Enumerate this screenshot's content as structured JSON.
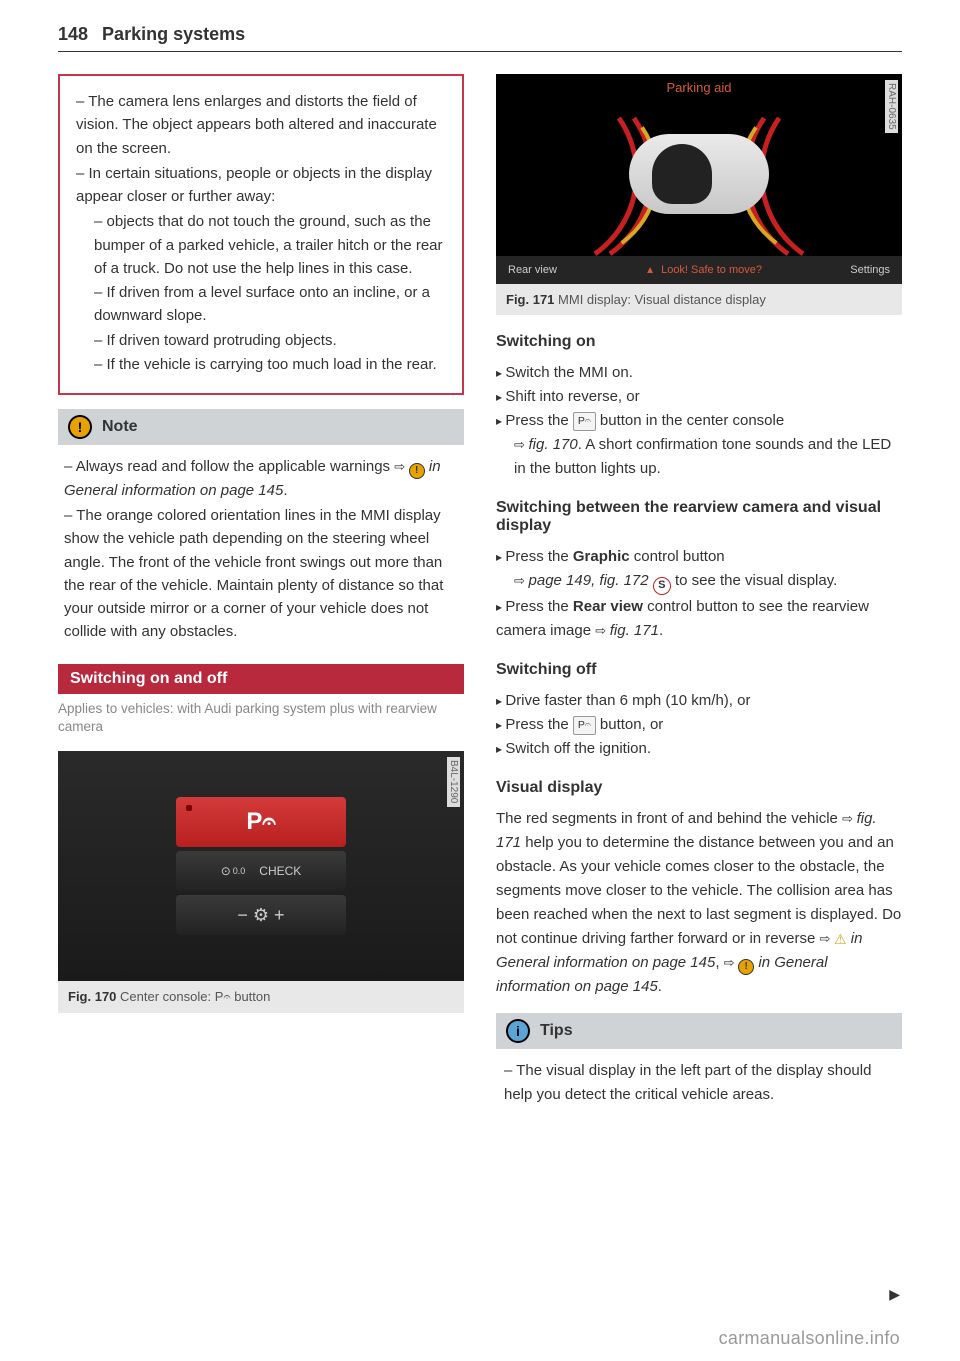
{
  "header": {
    "page_num": "148",
    "title": "Parking systems"
  },
  "col_left": {
    "warning_box": {
      "items": [
        "The camera lens enlarges and distorts the field of vision. The object appears both altered and inaccurate on the screen.",
        "In certain situations, people or objects in the display appear closer or further away:"
      ],
      "sub_items": [
        "objects that do not touch the ground, such as the bumper of a parked vehicle, a trailer hitch or the rear of a truck. Do not use the help lines in this case.",
        "If driven from a level surface onto an incline, or a downward slope.",
        "If driven toward protruding objects.",
        "If the vehicle is carrying too much load in the rear."
      ]
    },
    "note": {
      "label": "Note",
      "items": [
        {
          "pre": "Always read and follow the applicable warnings ",
          "link": "in General information on page 145",
          "post": "."
        },
        {
          "full": "The orange colored orientation lines in the MMI display show the vehicle path depending on the steering wheel angle. The front of the vehicle front swings out more than the rear of the vehicle. Maintain plenty of distance so that your outside mirror or a corner of your vehicle does not collide with any obstacles."
        }
      ]
    },
    "section_heading": "Switching on and off",
    "applies_to": "Applies to vehicles: with Audi parking system plus with rearview camera",
    "fig170": {
      "tag": "B4L-1290",
      "p_label": "P𝄐",
      "check_left": "0.0",
      "check_right": "CHECK",
      "wiper": "−  ⚙  +",
      "caption_bold": "Fig. 170",
      "caption_text": "Center console: P𝄐 button"
    }
  },
  "col_right": {
    "fig171": {
      "tag": "RAH-0635",
      "title": "Parking aid",
      "rear_view": "Rear view",
      "warn_text": "Look! Safe to move?",
      "settings": "Settings",
      "caption_bold": "Fig. 171",
      "caption_text": "MMI display: Visual distance display"
    },
    "switching_on": {
      "heading": "Switching on",
      "items": [
        "Switch the MMI on.",
        "Shift into reverse, or"
      ],
      "item3_pre": "Press the ",
      "item3_btn": "P𝄐",
      "item3_mid": " button in the center console ",
      "item3_link": "fig. 170",
      "item3_post": ". A short confirmation tone sounds and the LED in the button lights up."
    },
    "switching_between": {
      "heading": "Switching between the rearview camera and visual display",
      "item1_pre": "Press the ",
      "item1_bold": "Graphic",
      "item1_mid": " control button ",
      "item1_link": "page 149, fig. 172",
      "item1_s": "S",
      "item1_post": " to see the visual display.",
      "item2_pre": "Press the ",
      "item2_bold": "Rear view",
      "item2_mid": " control button to see the rearview camera image ",
      "item2_link": "fig. 171",
      "item2_post": "."
    },
    "switching_off": {
      "heading": "Switching off",
      "items": [
        "Drive faster than 6 mph (10 km/h), or"
      ],
      "item2_pre": "Press the ",
      "item2_btn": "P𝄐",
      "item2_post": " button, or",
      "item3": "Switch off the ignition."
    },
    "visual_display": {
      "heading": "Visual display",
      "text_pre": "The red segments in front of and behind the vehicle ",
      "text_link1": "fig. 171",
      "text_mid": " help you to determine the distance between you and an obstacle. As your vehicle comes closer to the obstacle, the segments move closer to the vehicle. The collision area has been reached when the next to last segment is displayed. Do not continue driving farther forward or in reverse ",
      "text_link2": "in General information on page 145",
      "text_sep": ", ",
      "text_link3": "in General information on page 145",
      "text_post": "."
    },
    "tips": {
      "label": "Tips",
      "item": "The visual display in the left part of the display should help you detect the critical vehicle areas."
    }
  },
  "watermark": "carmanualsonline.info"
}
